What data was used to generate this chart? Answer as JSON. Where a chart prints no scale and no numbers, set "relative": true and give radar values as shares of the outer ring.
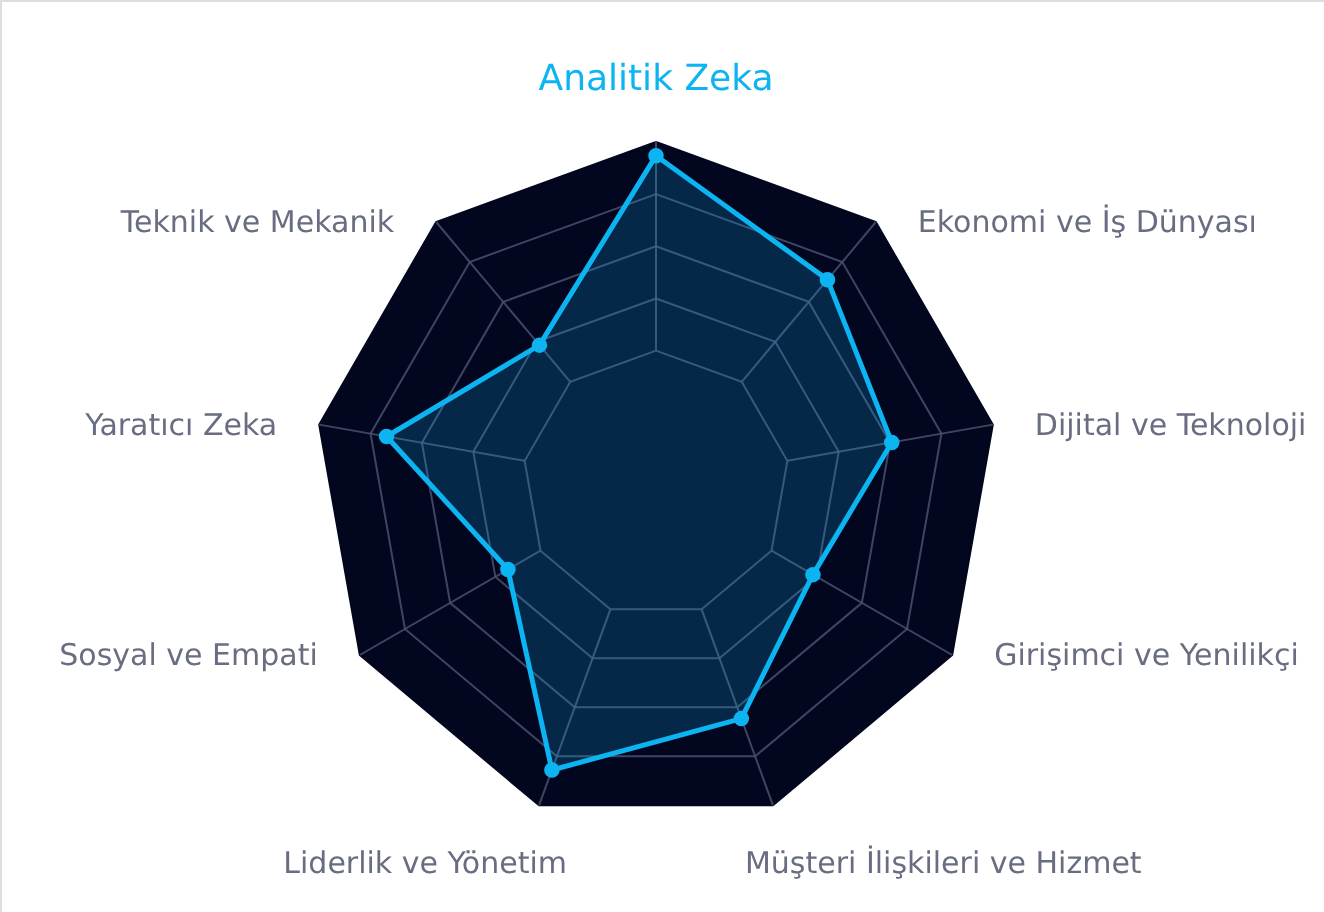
{
  "chart_data": {
    "type": "radar",
    "categories": [
      "Analitik Zeka",
      "Ekonomi ve İş Dünyası",
      "Dijital ve Teknoloji",
      "Girişimci ve Yenilikçi",
      "Müşteri İlişkileri ve Hizmet",
      "Liderlik ve Yönetim",
      "Sosyal ve Empati",
      "Yaratıcı Zeka",
      "Teknik ve Mekanik"
    ],
    "series": [
      {
        "color": "#0db4f2",
        "values": [
          0.96,
          0.78,
          0.7,
          0.53,
          0.73,
          0.89,
          0.5,
          0.8,
          0.53
        ]
      }
    ],
    "relative": true,
    "grid": true,
    "marker": "circle"
  }
}
